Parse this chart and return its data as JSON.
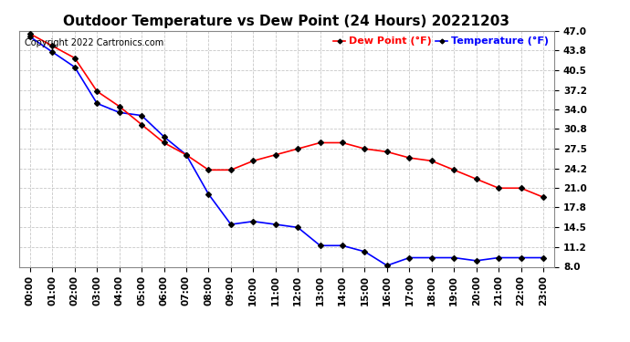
{
  "title": "Outdoor Temperature vs Dew Point (24 Hours) 20221203",
  "copyright_text": "Copyright 2022 Cartronics.com",
  "legend_dew": "Dew Point (°F)",
  "legend_temp": "Temperature (°F)",
  "hours": [
    "00:00",
    "01:00",
    "02:00",
    "03:00",
    "04:00",
    "05:00",
    "06:00",
    "07:00",
    "08:00",
    "09:00",
    "10:00",
    "11:00",
    "12:00",
    "13:00",
    "14:00",
    "15:00",
    "16:00",
    "17:00",
    "18:00",
    "19:00",
    "20:00",
    "21:00",
    "22:00",
    "23:00"
  ],
  "temperature": [
    46.0,
    43.5,
    41.0,
    35.0,
    33.5,
    33.0,
    29.5,
    26.5,
    20.0,
    15.0,
    15.5,
    15.0,
    14.5,
    11.5,
    11.5,
    10.5,
    8.2,
    9.5,
    9.5,
    9.5,
    9.0,
    9.5,
    9.5,
    9.5
  ],
  "dew_point": [
    46.5,
    44.5,
    42.5,
    37.0,
    34.5,
    31.5,
    28.5,
    26.5,
    24.0,
    24.0,
    25.5,
    26.5,
    27.5,
    28.5,
    28.5,
    27.5,
    27.0,
    26.0,
    25.5,
    24.0,
    22.5,
    21.0,
    21.0,
    19.5
  ],
  "temp_color": "#0000ff",
  "dew_color": "#ff0000",
  "bg_color": "#ffffff",
  "grid_color": "#c8c8c8",
  "ylim_min": 8.0,
  "ylim_max": 47.0,
  "yticks": [
    8.0,
    11.2,
    14.5,
    17.8,
    21.0,
    24.2,
    27.5,
    30.8,
    34.0,
    37.2,
    40.5,
    43.8,
    47.0
  ],
  "title_fontsize": 11,
  "copyright_fontsize": 7,
  "legend_fontsize": 8,
  "tick_fontsize": 7.5,
  "marker": "D",
  "marker_size": 3,
  "marker_color": "#000000",
  "line_width": 1.2
}
